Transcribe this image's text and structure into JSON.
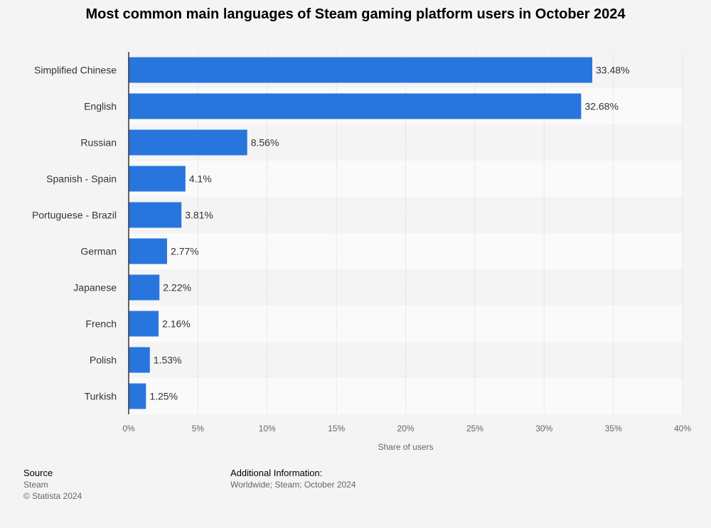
{
  "chart_data": {
    "type": "bar",
    "orientation": "horizontal",
    "title": "Most common main languages of Steam gaming platform users in October 2024",
    "xlabel": "Share of users",
    "ylabel": "",
    "categories": [
      "Simplified Chinese",
      "English",
      "Russian",
      "Spanish - Spain",
      "Portuguese - Brazil",
      "German",
      "Japanese",
      "French",
      "Polish",
      "Turkish"
    ],
    "values": [
      33.48,
      32.68,
      8.56,
      4.1,
      3.81,
      2.77,
      2.22,
      2.16,
      1.53,
      1.25
    ],
    "value_labels": [
      "33.48%",
      "32.68%",
      "8.56%",
      "4.1%",
      "3.81%",
      "2.77%",
      "2.22%",
      "2.16%",
      "1.53%",
      "1.25%"
    ],
    "xlim": [
      0,
      40
    ],
    "ticks": [
      0,
      5,
      10,
      15,
      20,
      25,
      30,
      35,
      40
    ],
    "tick_labels": [
      "0%",
      "5%",
      "10%",
      "15%",
      "20%",
      "25%",
      "30%",
      "35%",
      "40%"
    ],
    "grid": true,
    "bar_color": "#2876dd"
  },
  "footer": {
    "source_heading": "Source",
    "source_name": "Steam",
    "copyright": "© Statista 2024",
    "info_heading": "Additional Information:",
    "info_text": "Worldwide; Steam; October 2024"
  }
}
